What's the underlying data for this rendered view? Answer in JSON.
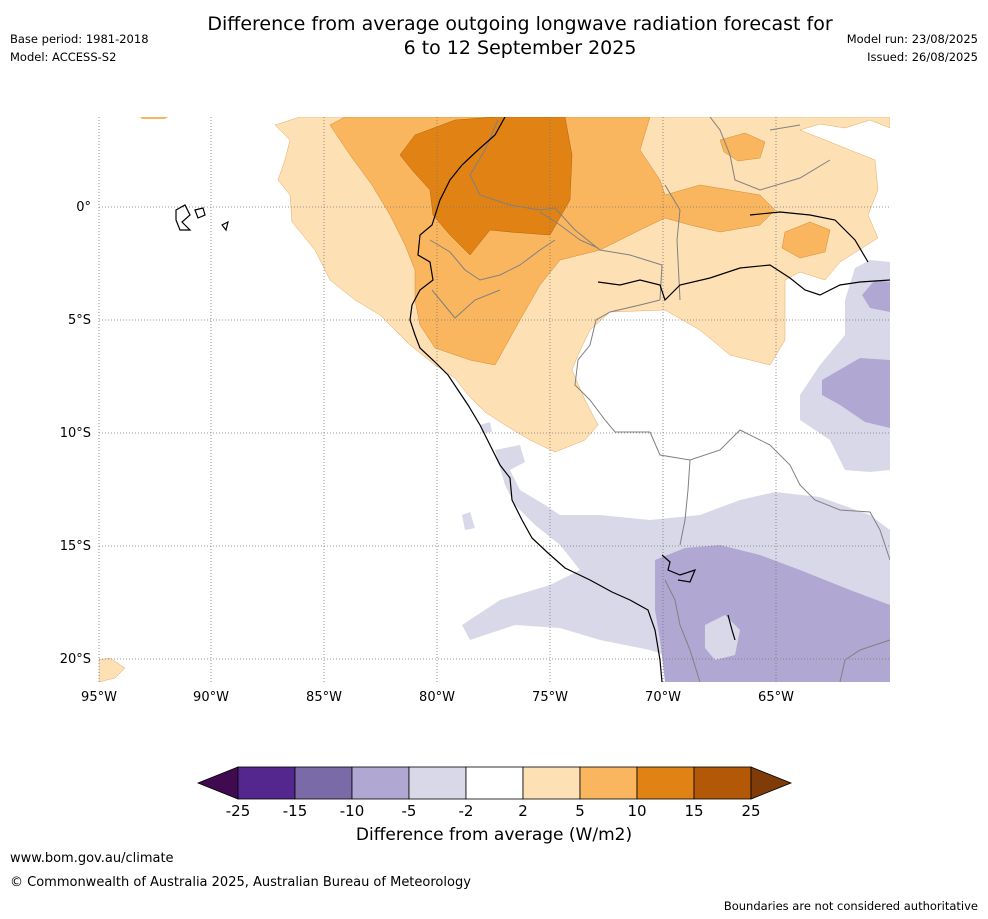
{
  "title": {
    "line1": "Difference from average outgoing longwave radiation forecast for",
    "line2": "6 to 12 September 2025"
  },
  "meta_left": {
    "base_period": "Base period: 1981-2018",
    "model": "Model: ACCESS-S2"
  },
  "meta_right": {
    "model_run": "Model run: 23/08/2025",
    "issued": "Issued: 26/08/2025"
  },
  "map": {
    "lat_labels": [
      "0°",
      "5°S",
      "10°S",
      "15°S",
      "20°S"
    ],
    "lon_labels": [
      "95°W",
      "90°W",
      "85°W",
      "80°W",
      "75°W",
      "70°W",
      "65°W"
    ]
  },
  "colorbar": {
    "ticks": [
      "-25",
      "-15",
      "-10",
      "-5",
      "-2",
      "2",
      "5",
      "10",
      "15",
      "25"
    ],
    "colors": [
      "#3f0a4f",
      "#54278f",
      "#7b6aa8",
      "#b0a8d2",
      "#d9d8e9",
      "#ffffff",
      "#fde0b4",
      "#f9b65f",
      "#e08214",
      "#b35806",
      "#7f3b08"
    ],
    "title": "Difference from average (W/m2)"
  },
  "footer": {
    "url": "www.bom.gov.au/climate",
    "copyright": "© Commonwealth of Australia 2025, Australian Bureau of Meteorology",
    "note": "Boundaries are not considered authoritative"
  }
}
